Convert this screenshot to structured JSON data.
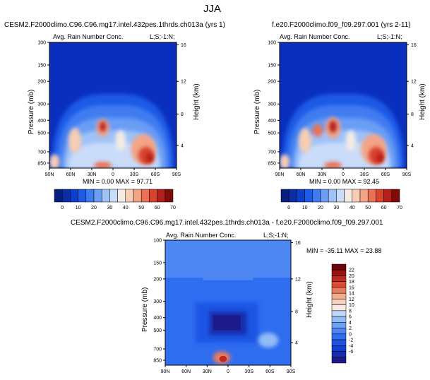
{
  "main_title": "JJA",
  "colors": {
    "dark_blue": "#0a2fbf",
    "scale_full": [
      "#081d80",
      "#0b2ea8",
      "#0d3fcf",
      "#1f5ae6",
      "#3f7bf0",
      "#6b9df5",
      "#9fc2f8",
      "#c9dcfa",
      "#f4ece4",
      "#f7cdb4",
      "#f3a487",
      "#ea7155",
      "#d8432e",
      "#b51f19",
      "#7f0b0b"
    ],
    "scale_diff": [
      "#1d1b8a",
      "#152fb0",
      "#173fcf",
      "#1f55e4",
      "#2e6cf0",
      "#4d87f3",
      "#6da2f5",
      "#92bcf7",
      "#bed7fa",
      "#f6ebe3",
      "#f6d1bd",
      "#f3ab8e",
      "#ea7b5c",
      "#da4b34",
      "#c02a1e",
      "#9a1412",
      "#6a0606"
    ]
  },
  "chart_data": [
    {
      "type": "heatmap",
      "panel_title": "CESM2.F2000climo.C96.C96.mg17.intel.432pes.1thrds.ch013a (yrs 1)",
      "field_label": "Avg. Rain Number Conc.",
      "region_label": "L;S;-1:N;",
      "ylabel": "Pressure (mb)",
      "ylabel_right": "Height (km)",
      "x_ticks": [
        "90N",
        "60N",
        "30N",
        "0",
        "30S",
        "60S",
        "90S"
      ],
      "y_ticks": [
        "100",
        "150",
        "200",
        "300",
        "400",
        "500",
        "700",
        "850"
      ],
      "y_ticks_right": [
        "16",
        "12",
        "8",
        "4"
      ],
      "stats": "MIN =   0.00  MAX =  97.71",
      "min": 0.0,
      "max": 97.71,
      "colorbar_levels": [
        "0",
        "10",
        "20",
        "30",
        "40",
        "50",
        "60",
        "70"
      ],
      "colorbar_orientation": "horizontal",
      "x_range": [
        90,
        -90
      ],
      "y_range_mb": [
        100,
        1000
      ]
    },
    {
      "type": "heatmap",
      "panel_title": "f.e20.F2000climo.f09_f09.297.001 (yrs 2-11)",
      "field_label": "Avg. Rain Number Conc.",
      "region_label": "L;S;-1:N;",
      "ylabel": "Pressure (mb)",
      "ylabel_right": "Height (km)",
      "x_ticks": [
        "90N",
        "60N",
        "30N",
        "0",
        "30S",
        "60S",
        "90S"
      ],
      "y_ticks": [
        "100",
        "150",
        "200",
        "300",
        "400",
        "500",
        "700",
        "850"
      ],
      "y_ticks_right": [
        "16",
        "12",
        "8",
        "4"
      ],
      "stats": "MIN =   0.00  MAX =  92.45",
      "min": 0.0,
      "max": 92.45,
      "colorbar_levels": [
        "0",
        "10",
        "20",
        "30",
        "40",
        "50",
        "60",
        "70"
      ],
      "colorbar_orientation": "horizontal",
      "x_range": [
        90,
        -90
      ],
      "y_range_mb": [
        100,
        1000
      ]
    },
    {
      "type": "heatmap",
      "panel_title": "CESM2.F2000climo.C96.C96.mg17.intel.432pes.1thrds.ch013a - f.e20.F2000climo.f09_f09.297.001",
      "field_label": "Avg. Rain Number Conc.",
      "region_label": "L;S;-1:N;",
      "ylabel": "Pressure (mb)",
      "ylabel_right": "Height (km)",
      "x_ticks": [
        "90N",
        "60N",
        "30N",
        "0",
        "30S",
        "60S",
        "90S"
      ],
      "y_ticks": [
        "100",
        "150",
        "200",
        "300",
        "400",
        "500",
        "700",
        "850"
      ],
      "y_ticks_right": [
        "16",
        "12",
        "8",
        "4"
      ],
      "stats": "MIN = -35.11  MAX =  23.88",
      "min": -35.11,
      "max": 23.88,
      "colorbar_levels": [
        "22",
        "20",
        "18",
        "16",
        "14",
        "12",
        "10",
        "8",
        "6",
        "4",
        "2",
        "0",
        "-2",
        "-4",
        "-6"
      ],
      "colorbar_orientation": "vertical",
      "x_range": [
        90,
        -90
      ],
      "y_range_mb": [
        100,
        1000
      ]
    }
  ]
}
